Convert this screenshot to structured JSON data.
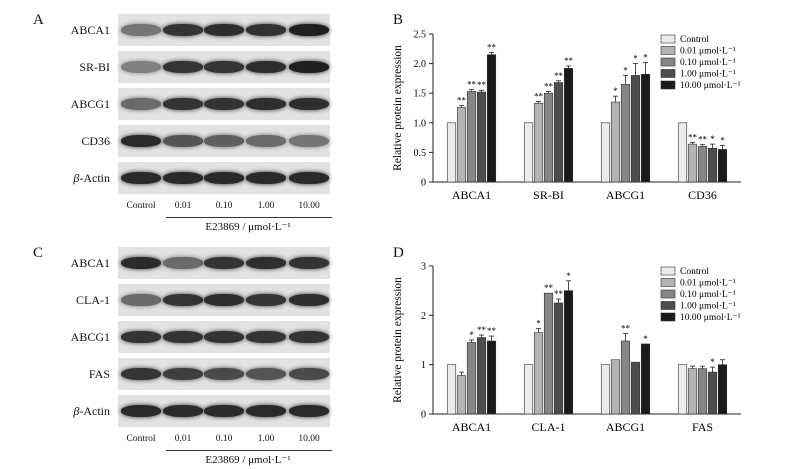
{
  "panels": {
    "A": "A",
    "B": "B",
    "C": "C",
    "D": "D"
  },
  "blot_top": {
    "rows": [
      {
        "pre": "",
        "label": "ABCA1",
        "italic": false,
        "intensity": [
          0.55,
          0.85,
          0.88,
          0.86,
          0.95
        ]
      },
      {
        "pre": "",
        "label": "SR-BI",
        "italic": false,
        "intensity": [
          0.5,
          0.85,
          0.85,
          0.88,
          0.95
        ]
      },
      {
        "pre": "",
        "label": "ABCG1",
        "italic": false,
        "intensity": [
          0.6,
          0.85,
          0.85,
          0.88,
          0.88
        ]
      },
      {
        "pre": "",
        "label": "CD36",
        "italic": false,
        "intensity": [
          0.9,
          0.7,
          0.65,
          0.6,
          0.55
        ]
      },
      {
        "pre": "β",
        "label": "-Actin",
        "italic": true,
        "intensity": [
          0.9,
          0.9,
          0.9,
          0.9,
          0.9
        ]
      }
    ],
    "lanes": [
      "Control",
      "0.01",
      "0.10",
      "1.00",
      "10.00"
    ],
    "unit": "E23869 / μmol·L⁻¹"
  },
  "blot_bottom": {
    "rows": [
      {
        "pre": "",
        "label": "ABCA1",
        "italic": false,
        "intensity": [
          0.9,
          0.6,
          0.85,
          0.88,
          0.85
        ]
      },
      {
        "pre": "",
        "label": "CLA-1",
        "italic": false,
        "intensity": [
          0.6,
          0.85,
          0.88,
          0.85,
          0.88
        ]
      },
      {
        "pre": "",
        "label": "ABCG1",
        "italic": false,
        "intensity": [
          0.85,
          0.85,
          0.85,
          0.85,
          0.85
        ]
      },
      {
        "pre": "",
        "label": "FAS",
        "italic": false,
        "intensity": [
          0.85,
          0.8,
          0.75,
          0.7,
          0.75
        ]
      },
      {
        "pre": "β",
        "label": "-Actin",
        "italic": true,
        "intensity": [
          0.9,
          0.9,
          0.9,
          0.9,
          0.9
        ]
      }
    ],
    "lanes": [
      "Control",
      "0.01",
      "0.10",
      "1.00",
      "10.00"
    ],
    "unit": "E23869 / μmol·L⁻¹"
  },
  "chart_data": [
    {
      "type": "bar",
      "panel": "B",
      "ylabel": "Relative protein expression",
      "ylim": [
        0,
        2.5
      ],
      "yticks": [
        "0",
        "0.5",
        "1.0",
        "1.5",
        "2.0",
        "2.5"
      ],
      "categories": [
        "ABCA1",
        "SR-BI",
        "ABCG1",
        "CD36"
      ],
      "legend": [
        "Control",
        "0.01 μmol·L⁻¹",
        "0.10 μmol·L⁻¹",
        "1.00 μmol·L⁻¹",
        "10.00 μmol·L⁻¹"
      ],
      "legend_position": "top-right",
      "colors": [
        "#ebebeb",
        "#b3b3b3",
        "#868686",
        "#4d4d4d",
        "#1a1a1a"
      ],
      "series": [
        {
          "name": "Control",
          "values": [
            1.0,
            1.0,
            1.0,
            1.0
          ],
          "errors": [
            0,
            0,
            0,
            0
          ],
          "sig": [
            "",
            "",
            "",
            ""
          ]
        },
        {
          "name": "0.01 μmol·L⁻¹",
          "values": [
            1.26,
            1.33,
            1.35,
            0.64
          ],
          "errors": [
            0.03,
            0.03,
            0.1,
            0.03
          ],
          "sig": [
            "**",
            "**",
            "*",
            "**"
          ]
        },
        {
          "name": "0.10 μmol·L⁻¹",
          "values": [
            1.53,
            1.5,
            1.65,
            0.6
          ],
          "errors": [
            0.03,
            0.03,
            0.15,
            0.03
          ],
          "sig": [
            "**",
            "**",
            "*",
            "**"
          ]
        },
        {
          "name": "1.00 μmol·L⁻¹",
          "values": [
            1.52,
            1.68,
            1.8,
            0.57
          ],
          "errors": [
            0.03,
            0.03,
            0.2,
            0.07
          ],
          "sig": [
            "**",
            "**",
            "*",
            "*"
          ]
        },
        {
          "name": "10.00 μmol·L⁻¹",
          "values": [
            2.15,
            1.92,
            1.82,
            0.55
          ],
          "errors": [
            0.04,
            0.04,
            0.2,
            0.07
          ],
          "sig": [
            "**",
            "**",
            "*",
            "*"
          ]
        }
      ]
    },
    {
      "type": "bar",
      "panel": "D",
      "ylabel": "Relative protein expression",
      "ylim": [
        0,
        3
      ],
      "yticks": [
        "0",
        "1",
        "2",
        "3"
      ],
      "categories": [
        "ABCA1",
        "CLA-1",
        "ABCG1",
        "FAS"
      ],
      "legend": [
        "Control",
        "0.01 μmol·L⁻¹",
        "0.10 μmol·L⁻¹",
        "1.00 μmol·L⁻¹",
        "10.00 μmol·L⁻¹"
      ],
      "legend_position": "top-right",
      "colors": [
        "#ebebeb",
        "#b3b3b3",
        "#868686",
        "#4d4d4d",
        "#1a1a1a"
      ],
      "series": [
        {
          "name": "Control",
          "values": [
            1.0,
            1.0,
            1.0,
            1.0
          ],
          "errors": [
            0,
            0,
            0,
            0
          ],
          "sig": [
            "",
            "",
            "",
            ""
          ]
        },
        {
          "name": "0.01 μmol·L⁻¹",
          "values": [
            0.78,
            1.65,
            1.1,
            0.92
          ],
          "errors": [
            0.07,
            0.08,
            0,
            0.05
          ],
          "sig": [
            "",
            "*",
            "",
            ""
          ]
        },
        {
          "name": "0.10 μmol·L⁻¹",
          "values": [
            1.45,
            2.45,
            1.48,
            0.92
          ],
          "errors": [
            0.05,
            0,
            0.15,
            0.05
          ],
          "sig": [
            "*",
            "**",
            "**",
            ""
          ]
        },
        {
          "name": "1.00 μmol·L⁻¹",
          "values": [
            1.55,
            2.25,
            1.05,
            0.85
          ],
          "errors": [
            0.05,
            0.08,
            0,
            0.1
          ],
          "sig": [
            "**",
            "**",
            "",
            "*"
          ]
        },
        {
          "name": "10.00 μmol·L⁻¹",
          "values": [
            1.48,
            2.5,
            1.42,
            1.0
          ],
          "errors": [
            0.1,
            0.2,
            0,
            0.1
          ],
          "sig": [
            "**",
            "*",
            "*",
            ""
          ]
        }
      ]
    }
  ]
}
